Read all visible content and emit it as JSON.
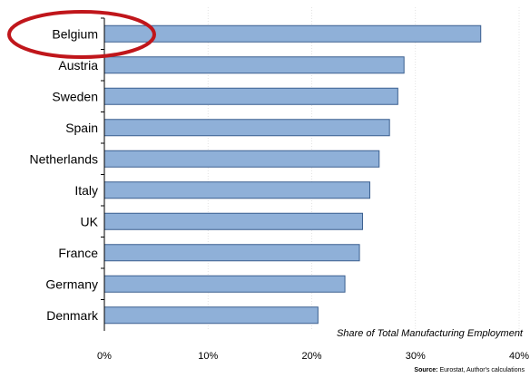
{
  "chart_data": {
    "type": "bar",
    "orientation": "horizontal",
    "categories": [
      "Belgium",
      "Austria",
      "Sweden",
      "Spain",
      "Netherlands",
      "Italy",
      "UK",
      "France",
      "Germany",
      "Denmark"
    ],
    "values": [
      36.3,
      28.9,
      28.3,
      27.5,
      26.5,
      25.6,
      24.9,
      24.6,
      23.2,
      20.6
    ],
    "xlim": [
      0,
      40
    ],
    "ticks": [
      0,
      10,
      20,
      30,
      40
    ],
    "tick_labels": [
      "0%",
      "10%",
      "20%",
      "30%",
      "40%"
    ],
    "grid": "vertical dotted",
    "annotation": "Share of Total Manufacturing Employment",
    "source_label": "Source:",
    "source_text": "Eurostat, Author's calculations",
    "highlight": "Belgium",
    "colors": {
      "bar_fill": "#8FB0D8",
      "bar_stroke": "#3A5F8F",
      "highlight_ring": "#C0161B"
    }
  }
}
